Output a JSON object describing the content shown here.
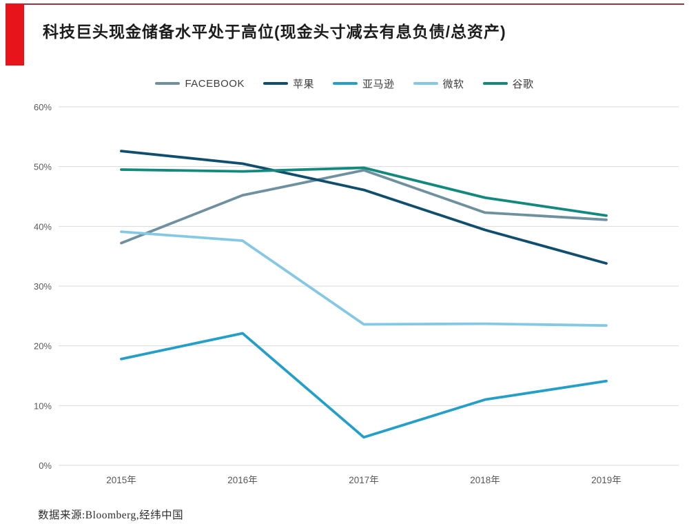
{
  "page": {
    "title": "科技巨头现金储备水平处于高位(现金头寸减去有息负债/总资产)",
    "source_note": "数据来源:Bloomberg,经纬中国",
    "accent_red": "#e8141c",
    "top_rule_color": "#96343a"
  },
  "chart_data": {
    "type": "line",
    "title": "科技巨头现金储备水平处于高位(现金头寸减去有息负债/总资产)",
    "categories": [
      "2015年",
      "2016年",
      "2017年",
      "2018年",
      "2019年"
    ],
    "series": [
      {
        "name": "FACEBOOK",
        "slug": "facebook",
        "color": "#6f909f",
        "values": [
          37.2,
          45.2,
          49.4,
          42.3,
          41.1
        ]
      },
      {
        "name": "苹果",
        "slug": "apple",
        "color": "#104e6e",
        "values": [
          52.6,
          50.5,
          46.1,
          39.4,
          33.8
        ]
      },
      {
        "name": "亚马逊",
        "slug": "amazon",
        "color": "#259fc8",
        "values": [
          17.8,
          22.1,
          4.7,
          11.0,
          14.1
        ]
      },
      {
        "name": "微软",
        "slug": "microsoft",
        "color": "#85c8e4",
        "values": [
          39.1,
          37.6,
          23.6,
          23.7,
          23.4
        ]
      },
      {
        "name": "谷歌",
        "slug": "google",
        "color": "#12897c",
        "values": [
          49.5,
          49.2,
          49.8,
          44.8,
          41.8
        ]
      }
    ],
    "xlabel": "",
    "ylabel": "",
    "ylim": [
      0,
      60
    ],
    "ytick_step": 10,
    "yticks": [
      "0%",
      "10%",
      "20%",
      "30%",
      "40%",
      "50%",
      "60%"
    ],
    "ytick_suffix": "%",
    "grid": true,
    "grid_color": "#d9d9d9",
    "tick_color": "#595959",
    "legend_position": "top"
  }
}
